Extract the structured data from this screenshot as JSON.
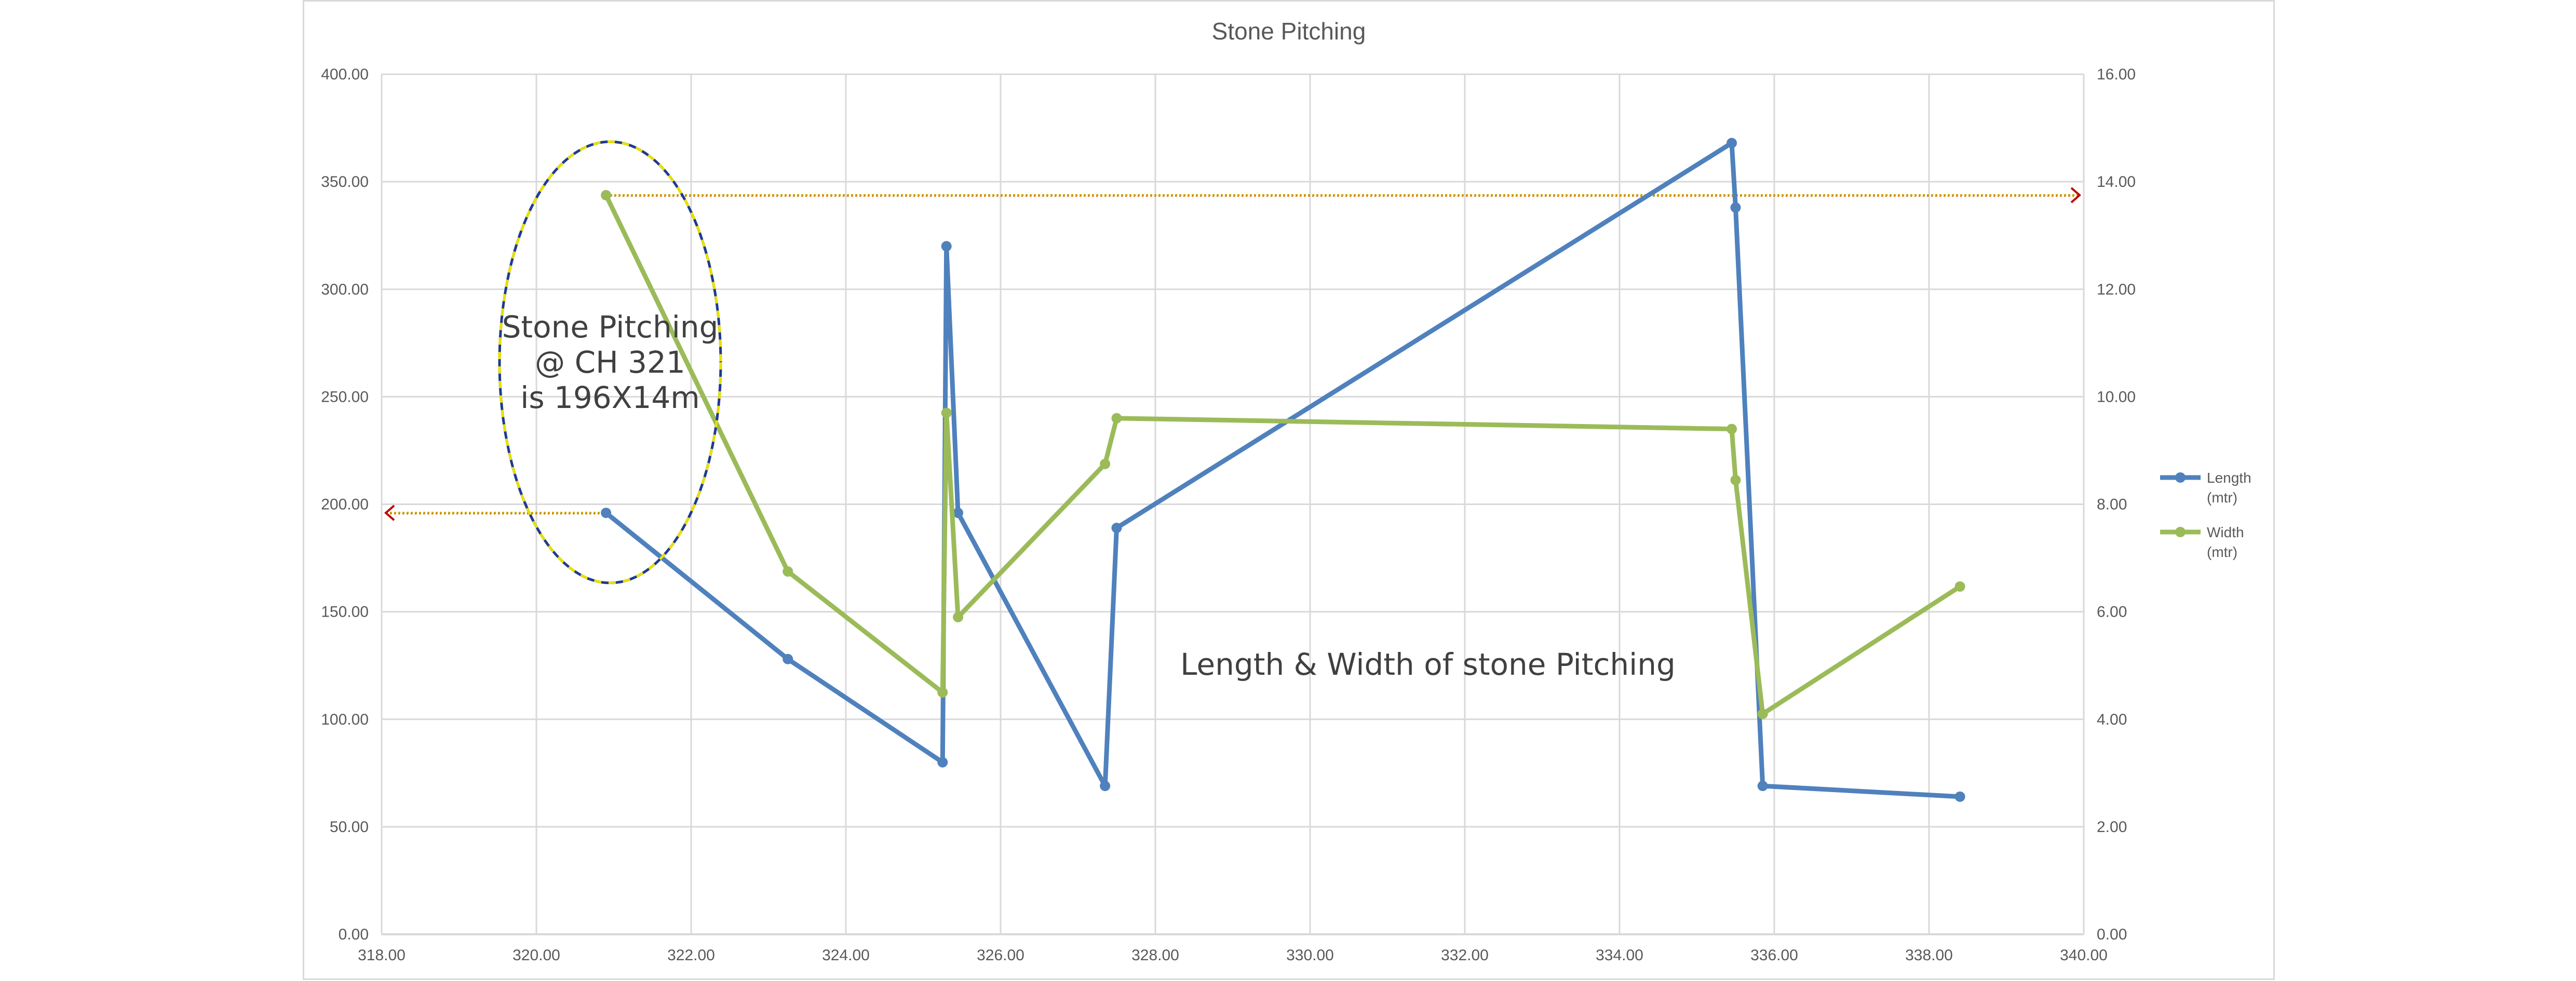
{
  "chart_data": {
    "type": "line",
    "title": "Stone Pitching",
    "xlim": [
      318,
      340
    ],
    "x_ticks": [
      "318.00",
      "320.00",
      "322.00",
      "324.00",
      "326.00",
      "328.00",
      "330.00",
      "332.00",
      "334.00",
      "336.00",
      "338.00",
      "340.00"
    ],
    "y_left_lim": [
      0,
      400
    ],
    "y_left_ticks": [
      "0.00",
      "50.00",
      "100.00",
      "150.00",
      "200.00",
      "250.00",
      "300.00",
      "350.00",
      "400.00"
    ],
    "y_right_lim": [
      0,
      16
    ],
    "y_right_ticks": [
      "0.00",
      "2.00",
      "4.00",
      "6.00",
      "8.00",
      "10.00",
      "12.00",
      "14.00",
      "16.00"
    ],
    "grid": true,
    "legend_position": "right",
    "series": [
      {
        "name": "Length (mtr)",
        "name_lines": [
          "Length",
          "(mtr)"
        ],
        "axis": "left",
        "color": "#4f81bd",
        "x": [
          320.9,
          323.25,
          325.25,
          325.3,
          325.45,
          327.35,
          327.5,
          335.45,
          335.5,
          335.85,
          338.4
        ],
        "y": [
          196,
          128,
          80,
          320,
          196,
          69,
          189,
          368,
          338,
          69,
          64
        ]
      },
      {
        "name": "Width (mtr)",
        "name_lines": [
          "Width",
          "(mtr)"
        ],
        "axis": "right",
        "color": "#9bbb59",
        "x": [
          320.9,
          323.25,
          325.25,
          325.3,
          325.45,
          327.35,
          327.5,
          335.45,
          335.5,
          335.85,
          338.4
        ],
        "y": [
          13.75,
          6.75,
          4.5,
          9.7,
          5.9,
          8.75,
          9.6,
          9.4,
          8.45,
          4.1,
          6.47
        ]
      }
    ],
    "annotations": {
      "callout_lines": [
        "Stone Pitching",
        "@ CH 321",
        "is 196X14m"
      ],
      "center_label": "Length & Width of stone Pitching",
      "reference_lines": [
        {
          "axis": "left",
          "y": 196,
          "direction": "left"
        },
        {
          "axis": "right",
          "y": 13.75,
          "direction": "right"
        }
      ]
    }
  }
}
